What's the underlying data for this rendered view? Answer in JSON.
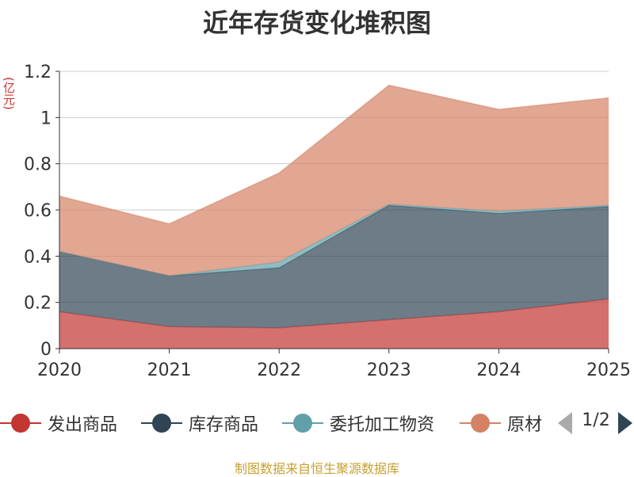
{
  "chart_data": {
    "type": "area",
    "stacked": true,
    "title": "近年存货变化堆积图",
    "y_unit": "(亿元)",
    "categories": [
      "2020",
      "2021",
      "2022",
      "2023",
      "2024",
      "2025"
    ],
    "ylim": [
      0,
      1.2
    ],
    "y_ticks": [
      "0",
      "0.2",
      "0.4",
      "0.6",
      "0.8",
      "1",
      "1.2"
    ],
    "grid": true,
    "legend_position": "bottom",
    "series": [
      {
        "name": "发出商品",
        "color": "#c23531",
        "values": [
          0.16,
          0.095,
          0.09,
          0.125,
          0.16,
          0.215
        ]
      },
      {
        "name": "库存商品",
        "color": "#2f4554",
        "values": [
          0.26,
          0.22,
          0.26,
          0.495,
          0.425,
          0.4
        ]
      },
      {
        "name": "委托加工物资",
        "color": "#61a0a8",
        "values": [
          0.0,
          0.0,
          0.025,
          0.005,
          0.01,
          0.005
        ]
      },
      {
        "name": "原材料",
        "color": "#d48265",
        "values": [
          0.24,
          0.225,
          0.385,
          0.515,
          0.44,
          0.465
        ]
      }
    ]
  },
  "legend": {
    "visible_labels": [
      "发出商品",
      "库存商品",
      "委托加工物资",
      "原材"
    ],
    "page_text": "1/2"
  },
  "source_text": "制图数据来自恒生聚源数据库"
}
